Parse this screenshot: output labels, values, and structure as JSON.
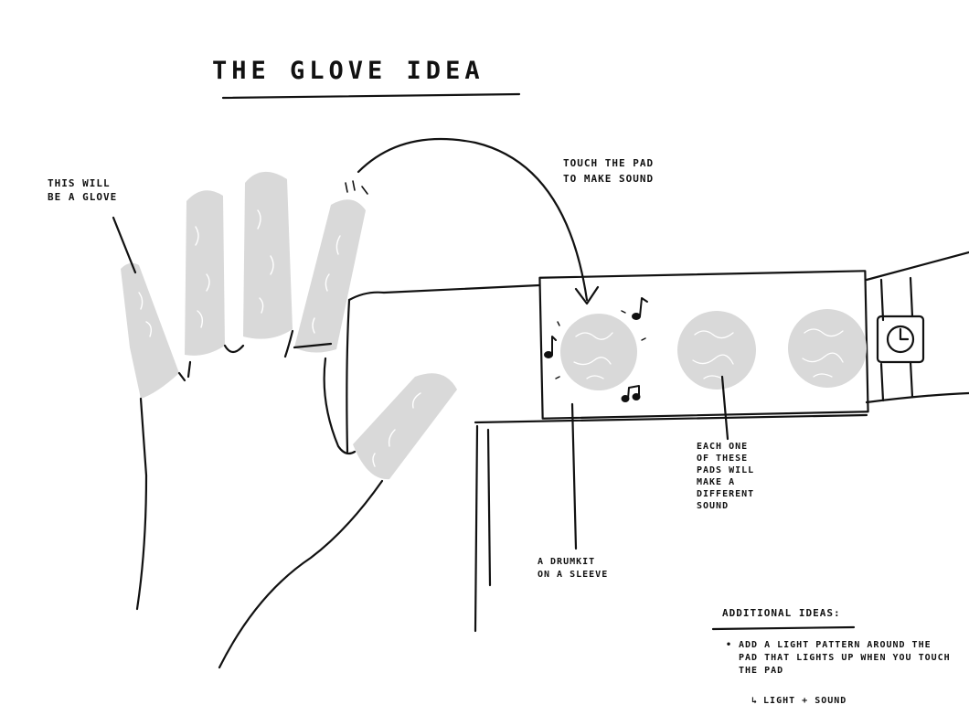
{
  "title": "THE GLOVE IDEA",
  "annotations": {
    "glove": [
      "THIS WILL",
      "BE A GLOVE"
    ],
    "touch": [
      "TOUCH THE PAD",
      "TO MAKE SOUND"
    ],
    "pads": [
      "EACH ONE",
      "OF THESE",
      "PADS WILL",
      "MAKE A",
      "DIFFERENT",
      "SOUND"
    ],
    "sleeve": [
      "A DRUMKIT",
      "ON A SLEEVE"
    ]
  },
  "additional_ideas": {
    "heading": "ADDITIONAL IDEAS:",
    "items": [
      "ADD A LIGHT PATTERN AROUND THE PAD THAT LIGHTS UP WHEN YOU TOUCH THE PAD"
    ],
    "sub_item_arrow": "↳",
    "sub_item": "LIGHT + SOUND"
  },
  "colors": {
    "ink": "#111111",
    "pad_fill": "#d9d9d9",
    "paper": "#ffffff"
  },
  "icons": [
    "music-note-icon",
    "watch-icon",
    "curved-arrow-icon"
  ]
}
